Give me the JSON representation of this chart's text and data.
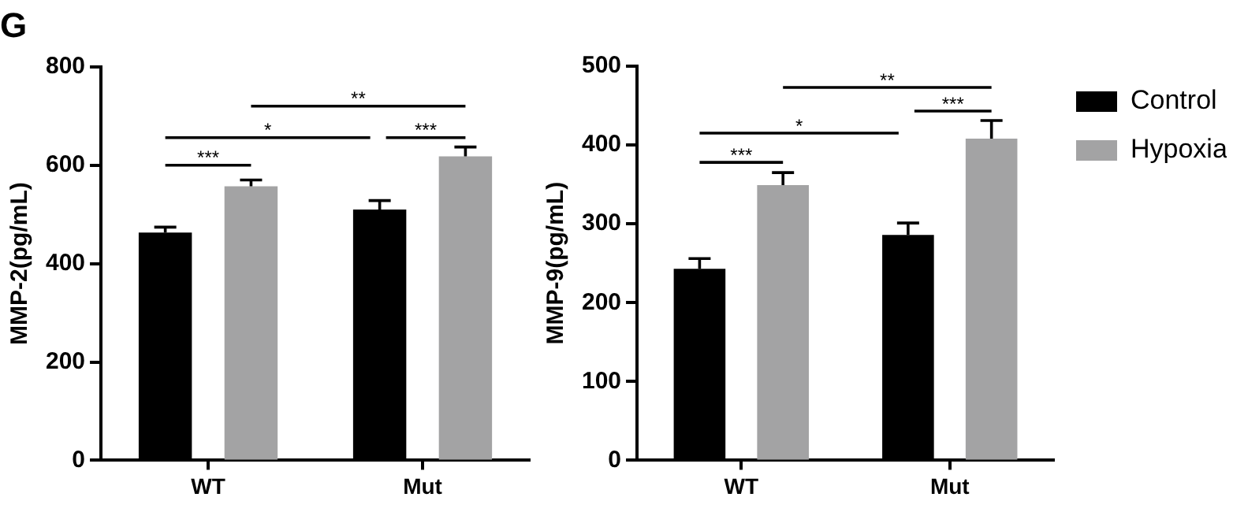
{
  "chart_data": [
    {
      "type": "bar",
      "title": "G",
      "ylabel": "MMP-2(pg/mL)",
      "categories": [
        "WT",
        "Mut"
      ],
      "series": [
        {
          "color": "#000000",
          "values": [
            463,
            510
          ],
          "errors": [
            11,
            18
          ]
        },
        {
          "color": "#a3a3a4",
          "values": [
            557,
            618
          ],
          "errors": [
            13,
            19
          ]
        }
      ],
      "ylim": [
        0,
        800
      ],
      "yticks": [
        0,
        200,
        400,
        600,
        800
      ],
      "grid": false,
      "legend": false,
      "annotations": [
        "***",
        "*",
        "***",
        "**"
      ]
    },
    {
      "type": "bar",
      "ylabel": "MMP-9(pg/mL)",
      "categories": [
        "WT",
        "Mut"
      ],
      "series": [
        {
          "name": "Control",
          "color": "#000000",
          "values": [
            243,
            286
          ],
          "errors": [
            13,
            15
          ]
        },
        {
          "name": "Hypoxia",
          "color": "#a3a3a4",
          "values": [
            349,
            408
          ],
          "errors": [
            16,
            23
          ]
        }
      ],
      "ylim": [
        0,
        500
      ],
      "yticks": [
        0,
        100,
        200,
        300,
        400,
        500
      ],
      "grid": false,
      "legend": "top right",
      "annotations": [
        "***",
        "*",
        "***",
        "**"
      ]
    }
  ]
}
